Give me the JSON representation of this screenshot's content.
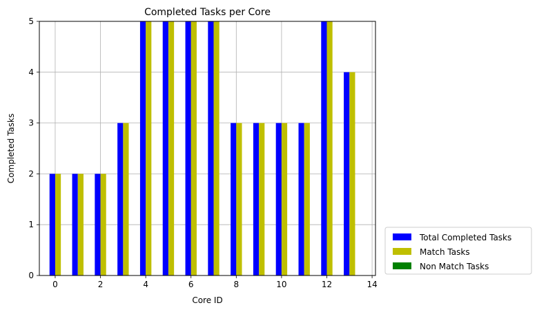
{
  "chart_data": {
    "type": "bar",
    "title": "Completed Tasks per Core",
    "xlabel": "Core ID",
    "ylabel": "Completed Tasks",
    "x": [
      0,
      1,
      2,
      3,
      4,
      5,
      6,
      7,
      8,
      9,
      10,
      11,
      12,
      13
    ],
    "xlim": [
      -0.7,
      14.15
    ],
    "ylim": [
      0,
      5
    ],
    "xticks": [
      0,
      2,
      4,
      6,
      8,
      10,
      12,
      14
    ],
    "yticks": [
      0,
      1,
      2,
      3,
      4,
      5
    ],
    "grid": true,
    "legend_position": "outside-bottom-right",
    "series": [
      {
        "name": "Total Completed Tasks",
        "color": "#0000ff",
        "values": [
          2,
          2,
          2,
          3,
          5,
          5,
          5,
          5,
          3,
          3,
          3,
          3,
          5,
          4
        ]
      },
      {
        "name": "Match Tasks",
        "color": "#bfbf00",
        "values": [
          2,
          2,
          2,
          3,
          5,
          5,
          5,
          5,
          3,
          3,
          3,
          3,
          5,
          4
        ]
      },
      {
        "name": "Non Match Tasks",
        "color": "#008000",
        "values": [
          0,
          0,
          0,
          0,
          0,
          0,
          0,
          0,
          0,
          0,
          0,
          0,
          0,
          0
        ]
      }
    ]
  }
}
